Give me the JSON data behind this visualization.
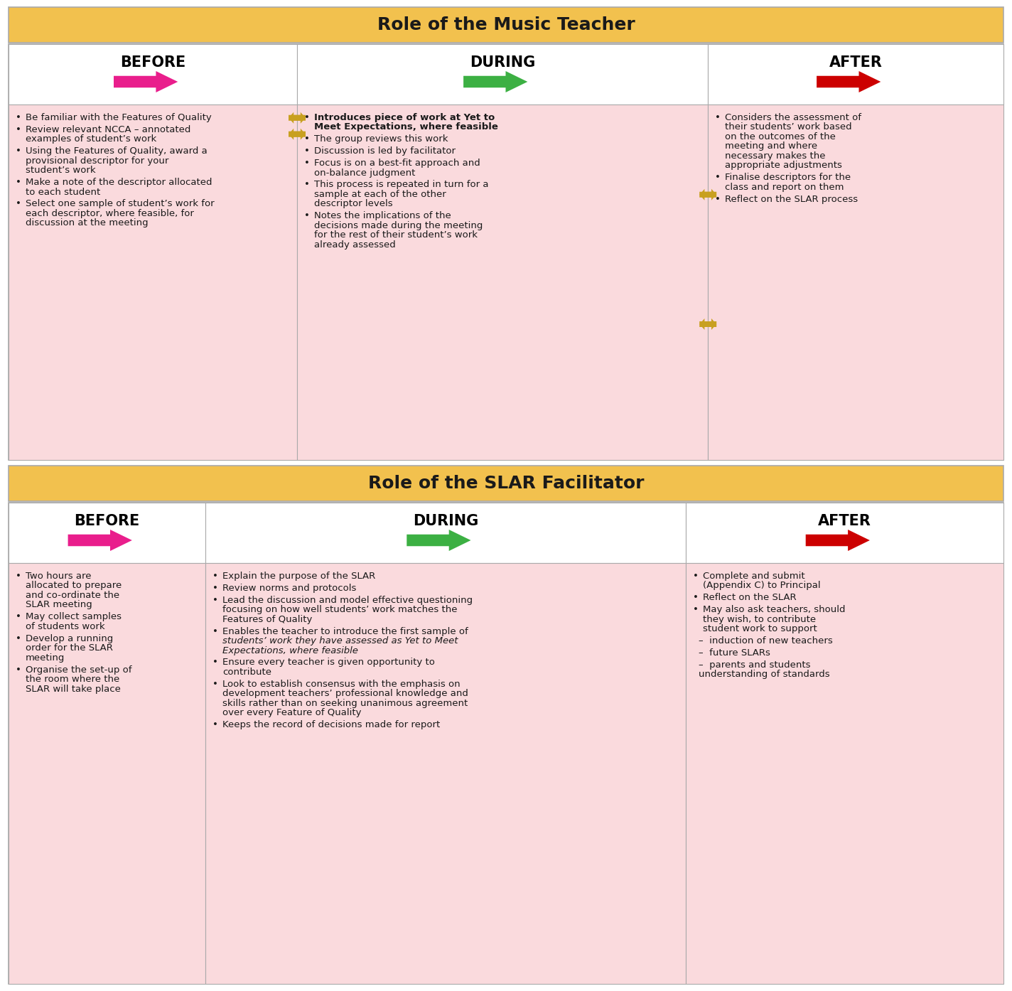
{
  "title1": "Role of the Music Teacher",
  "title2": "Role of the SLAR Facilitator",
  "header_bg": "#F2C14E",
  "cell_bg_pink": "#FADADD",
  "cell_bg_white": "#FFFFFF",
  "text_color": "#1a1a1a",
  "arrow_before": "#E91E8C",
  "arrow_during": "#3CB043",
  "arrow_after": "#CC0000",
  "double_arrow_color": "#C8A020",
  "teacher_before": [
    "Be familiar with the Features of Quality",
    "Review relevant NCCA – annotated\nexamples of student’s work",
    "Using the Features of Quality, award a\nprovisional descriptor for your\nstudent’s work",
    "Make a note of the descriptor allocated\nto each student",
    "Select one sample of student’s work for\neach descriptor, where feasible, for\ndiscussion at the meeting"
  ],
  "teacher_during": [
    "Introduces piece of work at [bold]Yet to\nMeet Expectations,[/bold] where feasible",
    "The group reviews this work",
    "Discussion is led by facilitator",
    "Focus is on a best-fit approach and\non-balance judgment",
    "This process is repeated in turn for a\nsample at each of the other\ndescriptor levels",
    "Notes the implications of the\ndecisions made during the meeting\nfor the rest of their student’s work\nalready assessed"
  ],
  "teacher_after": [
    "Considers the assessment of\ntheir students’ work based\non the outcomes of the\nmeeting and where\nnecessary makes the\nappropriate adjustments",
    "Finalise descriptors for the\nclass and report on them",
    "Reflect on the SLAR process"
  ],
  "facilitator_before": [
    "Two hours are\nallocated to prepare\nand co-ordinate the\nSLAR meeting",
    "May collect samples\nof students work",
    "Develop a running\norder for the SLAR\nmeeting",
    "Organise the set-up of\nthe room where the\nSLAR will take place"
  ],
  "facilitator_during": [
    "Explain the purpose of the SLAR",
    "Review norms and protocols",
    "Lead the discussion and model effective questioning\nfocusing on how well students’ work matches the\nFeatures of Quality",
    "Enables the teacher to introduce the first sample of\nstudents’ work they have assessed as [italic]Yet to Meet\nExpectations,[/italic] where feasible",
    "Ensure every teacher is given opportunity to\ncontribute",
    "Look to establish consensus with the emphasis on\ndevelopment teachers’ professional knowledge and\nskills rather than on seeking unanimous agreement\nover every Feature of Quality",
    "Keeps the record of decisions made for report"
  ],
  "facilitator_after": [
    "Complete and submit\n(Appendix C) to Principal",
    "Reflect on the SLAR",
    "May also ask teachers, should\nthey wish, to contribute\nstudent work to support",
    "–  induction of new teachers",
    "–  future SLARs",
    "–  parents and students\nunderstanding of standards"
  ]
}
